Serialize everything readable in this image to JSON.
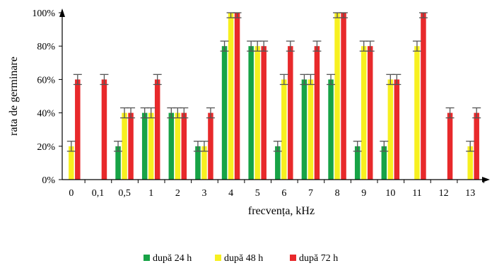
{
  "chart_data": {
    "type": "bar",
    "title": "",
    "xlabel": "frecvența, kHz",
    "ylabel": "rata de germinare",
    "ylim": [
      0,
      100
    ],
    "y_ticks": [
      "0%",
      "20%",
      "40%",
      "60%",
      "80%",
      "100%"
    ],
    "y_tick_values": [
      0,
      20,
      40,
      60,
      80,
      100
    ],
    "categories": [
      "0",
      "0,1",
      "0,5",
      "1",
      "2",
      "3",
      "4",
      "5",
      "6",
      "7",
      "8",
      "9",
      "10",
      "11",
      "12",
      "13"
    ],
    "error_bars": true,
    "error_value": 3,
    "grid": false,
    "legend_position": "bottom",
    "series": [
      {
        "name": "după 24 h",
        "color": "#17a346",
        "values": [
          0,
          0,
          20,
          40,
          40,
          20,
          80,
          80,
          20,
          60,
          60,
          20,
          20,
          0,
          0,
          0
        ]
      },
      {
        "name": "după 48 h",
        "color": "#f7f020",
        "values": [
          20,
          0,
          40,
          40,
          40,
          20,
          100,
          80,
          60,
          60,
          100,
          80,
          60,
          80,
          0,
          20
        ]
      },
      {
        "name": "după 72 h",
        "color": "#e8292b",
        "values": [
          60,
          60,
          40,
          60,
          40,
          40,
          100,
          80,
          80,
          80,
          100,
          80,
          60,
          100,
          40,
          40
        ]
      }
    ]
  }
}
